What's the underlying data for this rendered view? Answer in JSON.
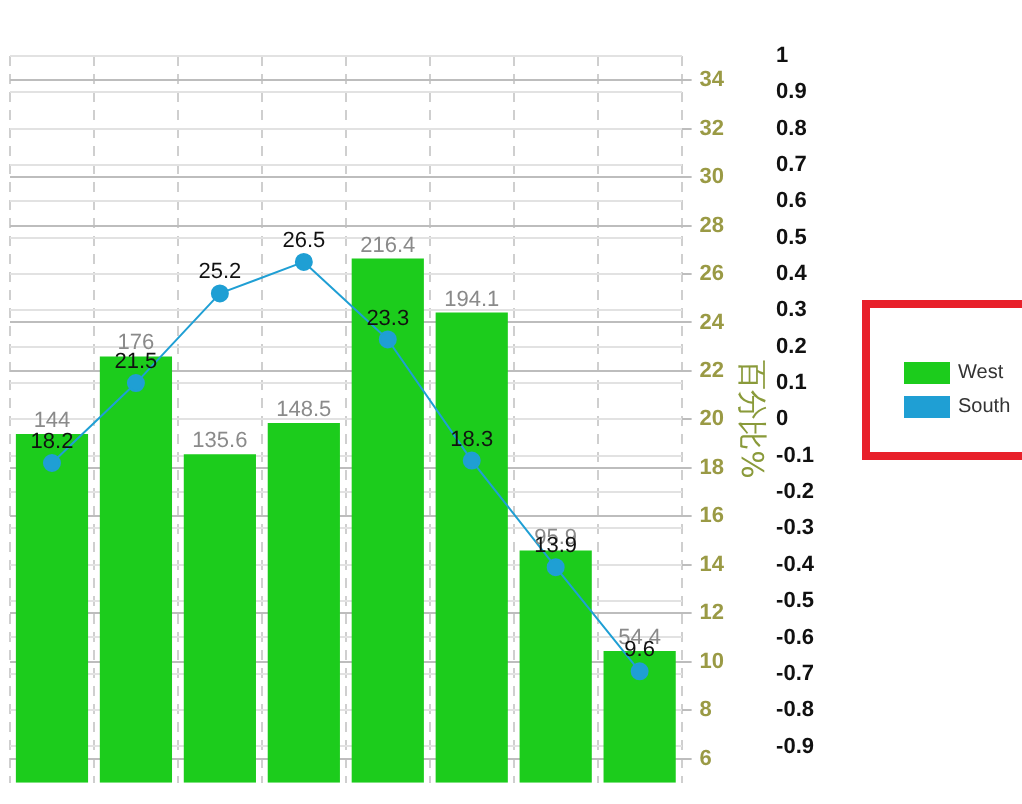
{
  "chart_data": {
    "type": "bar",
    "categories": [
      null,
      null,
      null,
      null,
      null,
      null,
      null,
      null
    ],
    "series": [
      {
        "name": "West",
        "color": "#1ccc1c",
        "values": [
          144,
          176,
          135.6,
          148.5,
          216.4,
          194.1,
          95.9,
          54.4
        ]
      },
      {
        "name": "South",
        "type": "line",
        "axis": "y2",
        "color": "#1f9fd4",
        "values": [
          18.2,
          21.5,
          25.2,
          26.5,
          23.3,
          18.3,
          13.9,
          9.6
        ]
      }
    ],
    "ylim": [
      0,
      300
    ],
    "y2lim": [
      5,
      35
    ],
    "y2ticks": [
      6,
      8,
      10,
      12,
      14,
      16,
      18,
      20,
      22,
      24,
      26,
      28,
      30,
      32,
      34
    ],
    "y2label": "百分比%",
    "y3lim": [
      -1,
      1
    ],
    "y3ticks": [
      1,
      0.9,
      0.8,
      0.7,
      0.6,
      0.5,
      0.4,
      0.3,
      0.2,
      0.1,
      0,
      -0.1,
      -0.2,
      -0.3,
      -0.4,
      -0.5,
      -0.6,
      -0.7,
      -0.8,
      -0.9
    ],
    "data_labels": true,
    "grid": true,
    "legend": "right",
    "marker": "circle",
    "line_style": "solid",
    "tick_labels": [
      "y2",
      "y3"
    ]
  }
}
